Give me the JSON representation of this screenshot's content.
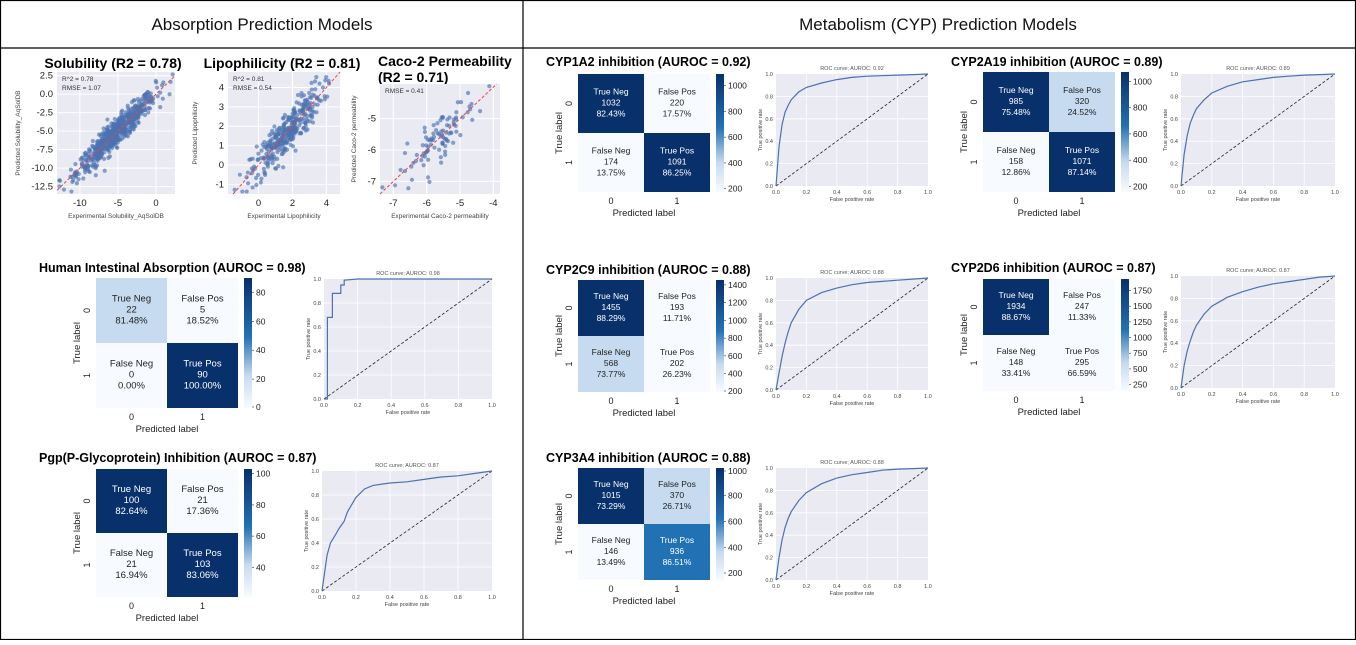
{
  "sections": {
    "absorption": "Absorption Prediction Models",
    "metabolism": "Metabolism (CYP) Prediction Models"
  },
  "axis_text": {
    "true_label": "True label",
    "predicted_label": "Predicted label",
    "fpr": "False positive rate",
    "tpr": "True positive rate"
  },
  "colors": {
    "dark": "#08306b",
    "mid": "#2171b5",
    "light": "#c6dbef",
    "lightest": "#f7fbff",
    "scatter": "#4c72b0",
    "roc": "#4c72b0",
    "grid_bg": "#eaeaf2",
    "diag": "#222222",
    "fit": "#e0474c"
  },
  "chart_data": [
    {
      "id": "solubility",
      "type": "scatter",
      "title": "Solubility (R2 = 0.78)",
      "annotations": [
        "R^2 = 0.78",
        "RMSE = 1.07"
      ],
      "xlabel": "Experimental Solubility_AqSolDB",
      "ylabel": "Predicted Solubility_AqSolDB",
      "xlim": [
        -13,
        2.5
      ],
      "ylim": [
        -13.5,
        3
      ],
      "xticks": [
        -10,
        -5,
        0
      ],
      "yticks": [
        2.5,
        0.0,
        -2.5,
        -5.0,
        -7.5,
        -10.0,
        -12.5
      ],
      "ytick_labels": [
        "2.5",
        "0.0",
        "-2.5",
        "-5.0",
        "-7.5",
        "-10.0",
        "-12.5"
      ],
      "n_points": 620,
      "spread": 0.9
    },
    {
      "id": "lipophilicity",
      "type": "scatter",
      "title": "Lipophilicity (R2 = 0.81)",
      "annotations": [
        "R^2 = 0.81",
        "RMSE = 0.54"
      ],
      "xlabel": "Experimental Lipophilicity",
      "ylabel": "Predicted Lipophilicity",
      "xlim": [
        -1.8,
        4.8
      ],
      "ylim": [
        -1.5,
        4.8
      ],
      "xticks": [
        0,
        2,
        4
      ],
      "yticks": [
        4,
        3,
        2,
        1,
        0,
        -1
      ],
      "ytick_labels": [
        "4",
        "3",
        "2",
        "1",
        "0",
        "-1"
      ],
      "n_points": 330,
      "spread": 0.55
    },
    {
      "id": "caco2",
      "type": "scatter",
      "title": "Caco-2 Permeability",
      "title2": "(R2 = 0.71)",
      "annotations": [
        "RMSE = 0.41"
      ],
      "xlabel": "Experimental Caco-2 permeability",
      "ylabel": "Predicted Caco-2 permeability",
      "xlim": [
        -7.4,
        -3.8
      ],
      "ylim": [
        -7.4,
        -3.9
      ],
      "xticks": [
        -7,
        -6,
        -5,
        -4
      ],
      "yticks": [
        -5,
        -6,
        -7
      ],
      "ytick_labels": [
        "-5",
        "-6",
        "-7"
      ],
      "n_points": 95,
      "spread": 0.35
    },
    {
      "id": "hia",
      "type": "heatmap",
      "title": "Human Intestinal Absorption (AUROC = 0.98)",
      "cells": [
        {
          "label": "True Neg",
          "count": "22",
          "pct": "81.48%",
          "shade": "light"
        },
        {
          "label": "False Pos",
          "count": "5",
          "pct": "18.52%",
          "shade": "lightest"
        },
        {
          "label": "False Neg",
          "count": "0",
          "pct": "0.00%",
          "shade": "lightest"
        },
        {
          "label": "True Pos",
          "count": "90",
          "pct": "100.00%",
          "shade": "dark"
        }
      ],
      "colorbar_ticks": [
        "80",
        "60",
        "40",
        "20",
        "0"
      ],
      "colorbar_range": [
        0,
        90
      ],
      "tick_rows": [
        "0",
        "1"
      ],
      "tick_cols": [
        "0",
        "1"
      ]
    },
    {
      "id": "hia_roc",
      "type": "line",
      "title": "ROC curve; AUROC: 0.98",
      "x": [
        0,
        0.02,
        0.02,
        0.05,
        0.05,
        0.1,
        0.1,
        0.12,
        0.12,
        0.2,
        1.0
      ],
      "y": [
        0,
        0,
        0.68,
        0.68,
        0.88,
        0.88,
        0.95,
        0.95,
        0.99,
        1.0,
        1.0
      ],
      "xlim": [
        0,
        1
      ],
      "ylim": [
        0,
        1
      ],
      "ticks": [
        "0.0",
        "0.2",
        "0.4",
        "0.6",
        "0.8",
        "1.0"
      ]
    },
    {
      "id": "pgp",
      "type": "heatmap",
      "title": "Pgp(P-Glycoprotein) Inhibition (AUROC = 0.87)",
      "cells": [
        {
          "label": "True Neg",
          "count": "100",
          "pct": "82.64%",
          "shade": "dark"
        },
        {
          "label": "False Pos",
          "count": "21",
          "pct": "17.36%",
          "shade": "lightest"
        },
        {
          "label": "False Neg",
          "count": "21",
          "pct": "16.94%",
          "shade": "lightest"
        },
        {
          "label": "True Pos",
          "count": "103",
          "pct": "83.06%",
          "shade": "dark"
        }
      ],
      "colorbar_ticks": [
        "100",
        "80",
        "60",
        "40"
      ],
      "colorbar_range": [
        21,
        103
      ],
      "tick_rows": [
        "0",
        "1"
      ],
      "tick_cols": [
        "0",
        "1"
      ]
    },
    {
      "id": "pgp_roc",
      "type": "line",
      "title": "ROC curve; AUROC: 0.87",
      "x": [
        0,
        0.01,
        0.02,
        0.03,
        0.05,
        0.08,
        0.1,
        0.13,
        0.15,
        0.2,
        0.25,
        0.3,
        0.4,
        0.5,
        0.6,
        0.7,
        0.8,
        0.9,
        1.0
      ],
      "y": [
        0,
        0.1,
        0.2,
        0.3,
        0.4,
        0.47,
        0.52,
        0.58,
        0.66,
        0.78,
        0.85,
        0.88,
        0.9,
        0.91,
        0.93,
        0.95,
        0.96,
        0.98,
        1.0
      ],
      "xlim": [
        0,
        1
      ],
      "ylim": [
        0,
        1
      ],
      "ticks": [
        "0.0",
        "0.2",
        "0.4",
        "0.6",
        "0.8",
        "1.0"
      ]
    },
    {
      "id": "cyp1a2",
      "type": "heatmap",
      "title": "CYP1A2 inhibition (AUROC = 0.92)",
      "cells": [
        {
          "label": "True Neg",
          "count": "1032",
          "pct": "82.43%",
          "shade": "dark"
        },
        {
          "label": "False Pos",
          "count": "220",
          "pct": "17.57%",
          "shade": "lightest"
        },
        {
          "label": "False Neg",
          "count": "174",
          "pct": "13.75%",
          "shade": "lightest"
        },
        {
          "label": "True Pos",
          "count": "1091",
          "pct": "86.25%",
          "shade": "dark"
        }
      ],
      "colorbar_ticks": [
        "1000",
        "800",
        "600",
        "400",
        "200"
      ],
      "colorbar_range": [
        174,
        1091
      ],
      "tick_rows": [
        "0",
        "1"
      ],
      "tick_cols": [
        "0",
        "1"
      ]
    },
    {
      "id": "cyp1a2_roc",
      "type": "line",
      "title": "ROC curve; AUROC: 0.92",
      "x": [
        0,
        0.02,
        0.04,
        0.06,
        0.08,
        0.1,
        0.15,
        0.2,
        0.3,
        0.4,
        0.5,
        0.6,
        0.7,
        0.8,
        0.9,
        1.0
      ],
      "y": [
        0,
        0.35,
        0.55,
        0.66,
        0.72,
        0.77,
        0.84,
        0.88,
        0.92,
        0.95,
        0.97,
        0.98,
        0.985,
        0.99,
        0.995,
        1.0
      ],
      "xlim": [
        0,
        1
      ],
      "ylim": [
        0,
        1
      ],
      "ticks": [
        "0.0",
        "0.2",
        "0.4",
        "0.6",
        "0.8",
        "1.0"
      ]
    },
    {
      "id": "cyp2c19",
      "type": "heatmap",
      "title": "CYP2A19 inhibition (AUROC = 0.89)",
      "cells": [
        {
          "label": "True Neg",
          "count": "985",
          "pct": "75.48%",
          "shade": "dark"
        },
        {
          "label": "False Pos",
          "count": "320",
          "pct": "24.52%",
          "shade": "light"
        },
        {
          "label": "False Neg",
          "count": "158",
          "pct": "12.86%",
          "shade": "lightest"
        },
        {
          "label": "True Pos",
          "count": "1071",
          "pct": "87.14%",
          "shade": "dark"
        }
      ],
      "colorbar_ticks": [
        "1000",
        "800",
        "600",
        "400",
        "200"
      ],
      "colorbar_range": [
        158,
        1071
      ],
      "tick_rows": [
        "0",
        "1"
      ],
      "tick_cols": [
        "0",
        "1"
      ]
    },
    {
      "id": "cyp2c19_roc",
      "type": "line",
      "title": "ROC curve; AUROC: 0.89",
      "x": [
        0,
        0.02,
        0.04,
        0.06,
        0.08,
        0.1,
        0.15,
        0.2,
        0.3,
        0.4,
        0.5,
        0.6,
        0.7,
        0.8,
        0.9,
        1.0
      ],
      "y": [
        0,
        0.28,
        0.45,
        0.56,
        0.63,
        0.69,
        0.77,
        0.83,
        0.89,
        0.93,
        0.95,
        0.97,
        0.98,
        0.99,
        0.995,
        1.0
      ],
      "xlim": [
        0,
        1
      ],
      "ylim": [
        0,
        1
      ],
      "ticks": [
        "0.0",
        "0.2",
        "0.4",
        "0.6",
        "0.8",
        "1.0"
      ]
    },
    {
      "id": "cyp2c9",
      "type": "heatmap",
      "title": "CYP2C9 inhibition (AUROC = 0.88)",
      "cells": [
        {
          "label": "True Neg",
          "count": "1455",
          "pct": "88.29%",
          "shade": "dark"
        },
        {
          "label": "False Pos",
          "count": "193",
          "pct": "11.71%",
          "shade": "lightest"
        },
        {
          "label": "False Neg",
          "count": "568",
          "pct": "73.77%",
          "shade": "light"
        },
        {
          "label": "True Pos",
          "count": "202",
          "pct": "26.23%",
          "shade": "lightest"
        }
      ],
      "colorbar_ticks": [
        "1400",
        "1200",
        "1000",
        "800",
        "600",
        "400",
        "200"
      ],
      "colorbar_range": [
        193,
        1455
      ],
      "tick_rows": [
        "0",
        "1"
      ],
      "tick_cols": [
        "0",
        "1"
      ]
    },
    {
      "id": "cyp2c9_roc",
      "type": "line",
      "title": "ROC curve; AUROC: 0.88",
      "x": [
        0,
        0.02,
        0.04,
        0.06,
        0.08,
        0.1,
        0.15,
        0.2,
        0.3,
        0.4,
        0.5,
        0.6,
        0.7,
        0.8,
        0.9,
        1.0
      ],
      "y": [
        0,
        0.15,
        0.3,
        0.42,
        0.52,
        0.6,
        0.72,
        0.8,
        0.87,
        0.91,
        0.94,
        0.96,
        0.97,
        0.98,
        0.99,
        1.0
      ],
      "xlim": [
        0,
        1
      ],
      "ylim": [
        0,
        1
      ],
      "ticks": [
        "0.0",
        "0.2",
        "0.4",
        "0.6",
        "0.8",
        "1.0"
      ]
    },
    {
      "id": "cyp2d6",
      "type": "heatmap",
      "title": "CYP2D6 inhibition (AUROC = 0.87)",
      "cells": [
        {
          "label": "True Neg",
          "count": "1934",
          "pct": "88.67%",
          "shade": "dark"
        },
        {
          "label": "False Pos",
          "count": "247",
          "pct": "11.33%",
          "shade": "lightest"
        },
        {
          "label": "False Neg",
          "count": "148",
          "pct": "33.41%",
          "shade": "lightest"
        },
        {
          "label": "True Pos",
          "count": "295",
          "pct": "66.59%",
          "shade": "lightest"
        }
      ],
      "colorbar_ticks": [
        "1750",
        "1500",
        "1250",
        "1000",
        "750",
        "500",
        "250"
      ],
      "colorbar_range": [
        148,
        1934
      ],
      "tick_rows": [
        "0",
        "1"
      ],
      "tick_cols": [
        "0",
        "1"
      ]
    },
    {
      "id": "cyp2d6_roc",
      "type": "line",
      "title": "ROC curve; AUROC: 0.87",
      "x": [
        0,
        0.02,
        0.04,
        0.06,
        0.08,
        0.1,
        0.15,
        0.2,
        0.3,
        0.4,
        0.5,
        0.6,
        0.7,
        0.8,
        0.9,
        1.0
      ],
      "y": [
        0,
        0.2,
        0.33,
        0.42,
        0.5,
        0.56,
        0.66,
        0.73,
        0.81,
        0.86,
        0.9,
        0.93,
        0.95,
        0.97,
        0.99,
        1.0
      ],
      "xlim": [
        0,
        1
      ],
      "ylim": [
        0,
        1
      ],
      "ticks": [
        "0.0",
        "0.2",
        "0.4",
        "0.6",
        "0.8",
        "1.0"
      ]
    },
    {
      "id": "cyp3a4",
      "type": "heatmap",
      "title": "CYP3A4 inhibition (AUROC = 0.88)",
      "cells": [
        {
          "label": "True Neg",
          "count": "1015",
          "pct": "73.29%",
          "shade": "dark"
        },
        {
          "label": "False Pos",
          "count": "370",
          "pct": "26.71%",
          "shade": "light"
        },
        {
          "label": "False Neg",
          "count": "146",
          "pct": "13.49%",
          "shade": "lightest"
        },
        {
          "label": "True Pos",
          "count": "936",
          "pct": "86.51%",
          "shade": "mid"
        }
      ],
      "colorbar_ticks": [
        "1000",
        "800",
        "600",
        "400",
        "200"
      ],
      "colorbar_range": [
        146,
        1015
      ],
      "tick_rows": [
        "0",
        "1"
      ],
      "tick_cols": [
        "0",
        "1"
      ]
    },
    {
      "id": "cyp3a4_roc",
      "type": "line",
      "title": "ROC curve; AUROC: 0.88",
      "x": [
        0,
        0.02,
        0.04,
        0.06,
        0.08,
        0.1,
        0.15,
        0.2,
        0.3,
        0.4,
        0.5,
        0.6,
        0.7,
        0.8,
        0.9,
        1.0
      ],
      "y": [
        0,
        0.2,
        0.36,
        0.47,
        0.55,
        0.61,
        0.71,
        0.78,
        0.86,
        0.91,
        0.94,
        0.96,
        0.98,
        0.99,
        0.995,
        1.0
      ],
      "xlim": [
        0,
        1
      ],
      "ylim": [
        0,
        1
      ],
      "ticks": [
        "0.0",
        "0.2",
        "0.4",
        "0.6",
        "0.8",
        "1.0"
      ]
    }
  ]
}
